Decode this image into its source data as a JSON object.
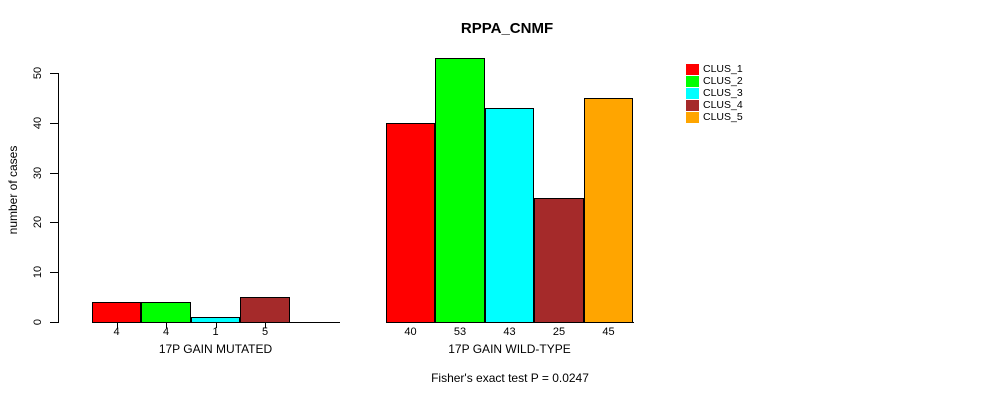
{
  "chart_data": {
    "type": "bar",
    "title": "RPPA_CNMF",
    "ylabel": "number of cases",
    "xlabel": "",
    "ylim": [
      0,
      50
    ],
    "yticks": [
      0,
      10,
      20,
      30,
      40,
      50
    ],
    "categories": [
      "17P GAIN MUTATED",
      "17P GAIN WILD-TYPE"
    ],
    "series": [
      {
        "name": "CLUS_1",
        "color": "#FF0000",
        "values": [
          4,
          40
        ]
      },
      {
        "name": "CLUS_2",
        "color": "#00FF00",
        "values": [
          4,
          53
        ]
      },
      {
        "name": "CLUS_3",
        "color": "#00FFFF",
        "values": [
          1,
          43
        ]
      },
      {
        "name": "CLUS_4",
        "color": "#A52A2A",
        "values": [
          5,
          25
        ]
      },
      {
        "name": "CLUS_5",
        "color": "#FFA500",
        "values": [
          0,
          45
        ]
      }
    ],
    "bar_value_labels": {
      "17P GAIN MUTATED": [
        "4",
        "4",
        "1",
        "5",
        ""
      ],
      "17P GAIN WILD-TYPE": [
        "40",
        "53",
        "43",
        "25",
        "45"
      ]
    },
    "annotation": "Fisher's exact test P = 0.0247",
    "legend_position": "right",
    "legend_entries": [
      "CLUS_1",
      "CLUS_2",
      "CLUS_3",
      "CLUS_4",
      "CLUS_5"
    ],
    "grid": false,
    "axis_color": "#000000",
    "bar_border_color": "#000000",
    "background_color": "#FFFFFF"
  }
}
